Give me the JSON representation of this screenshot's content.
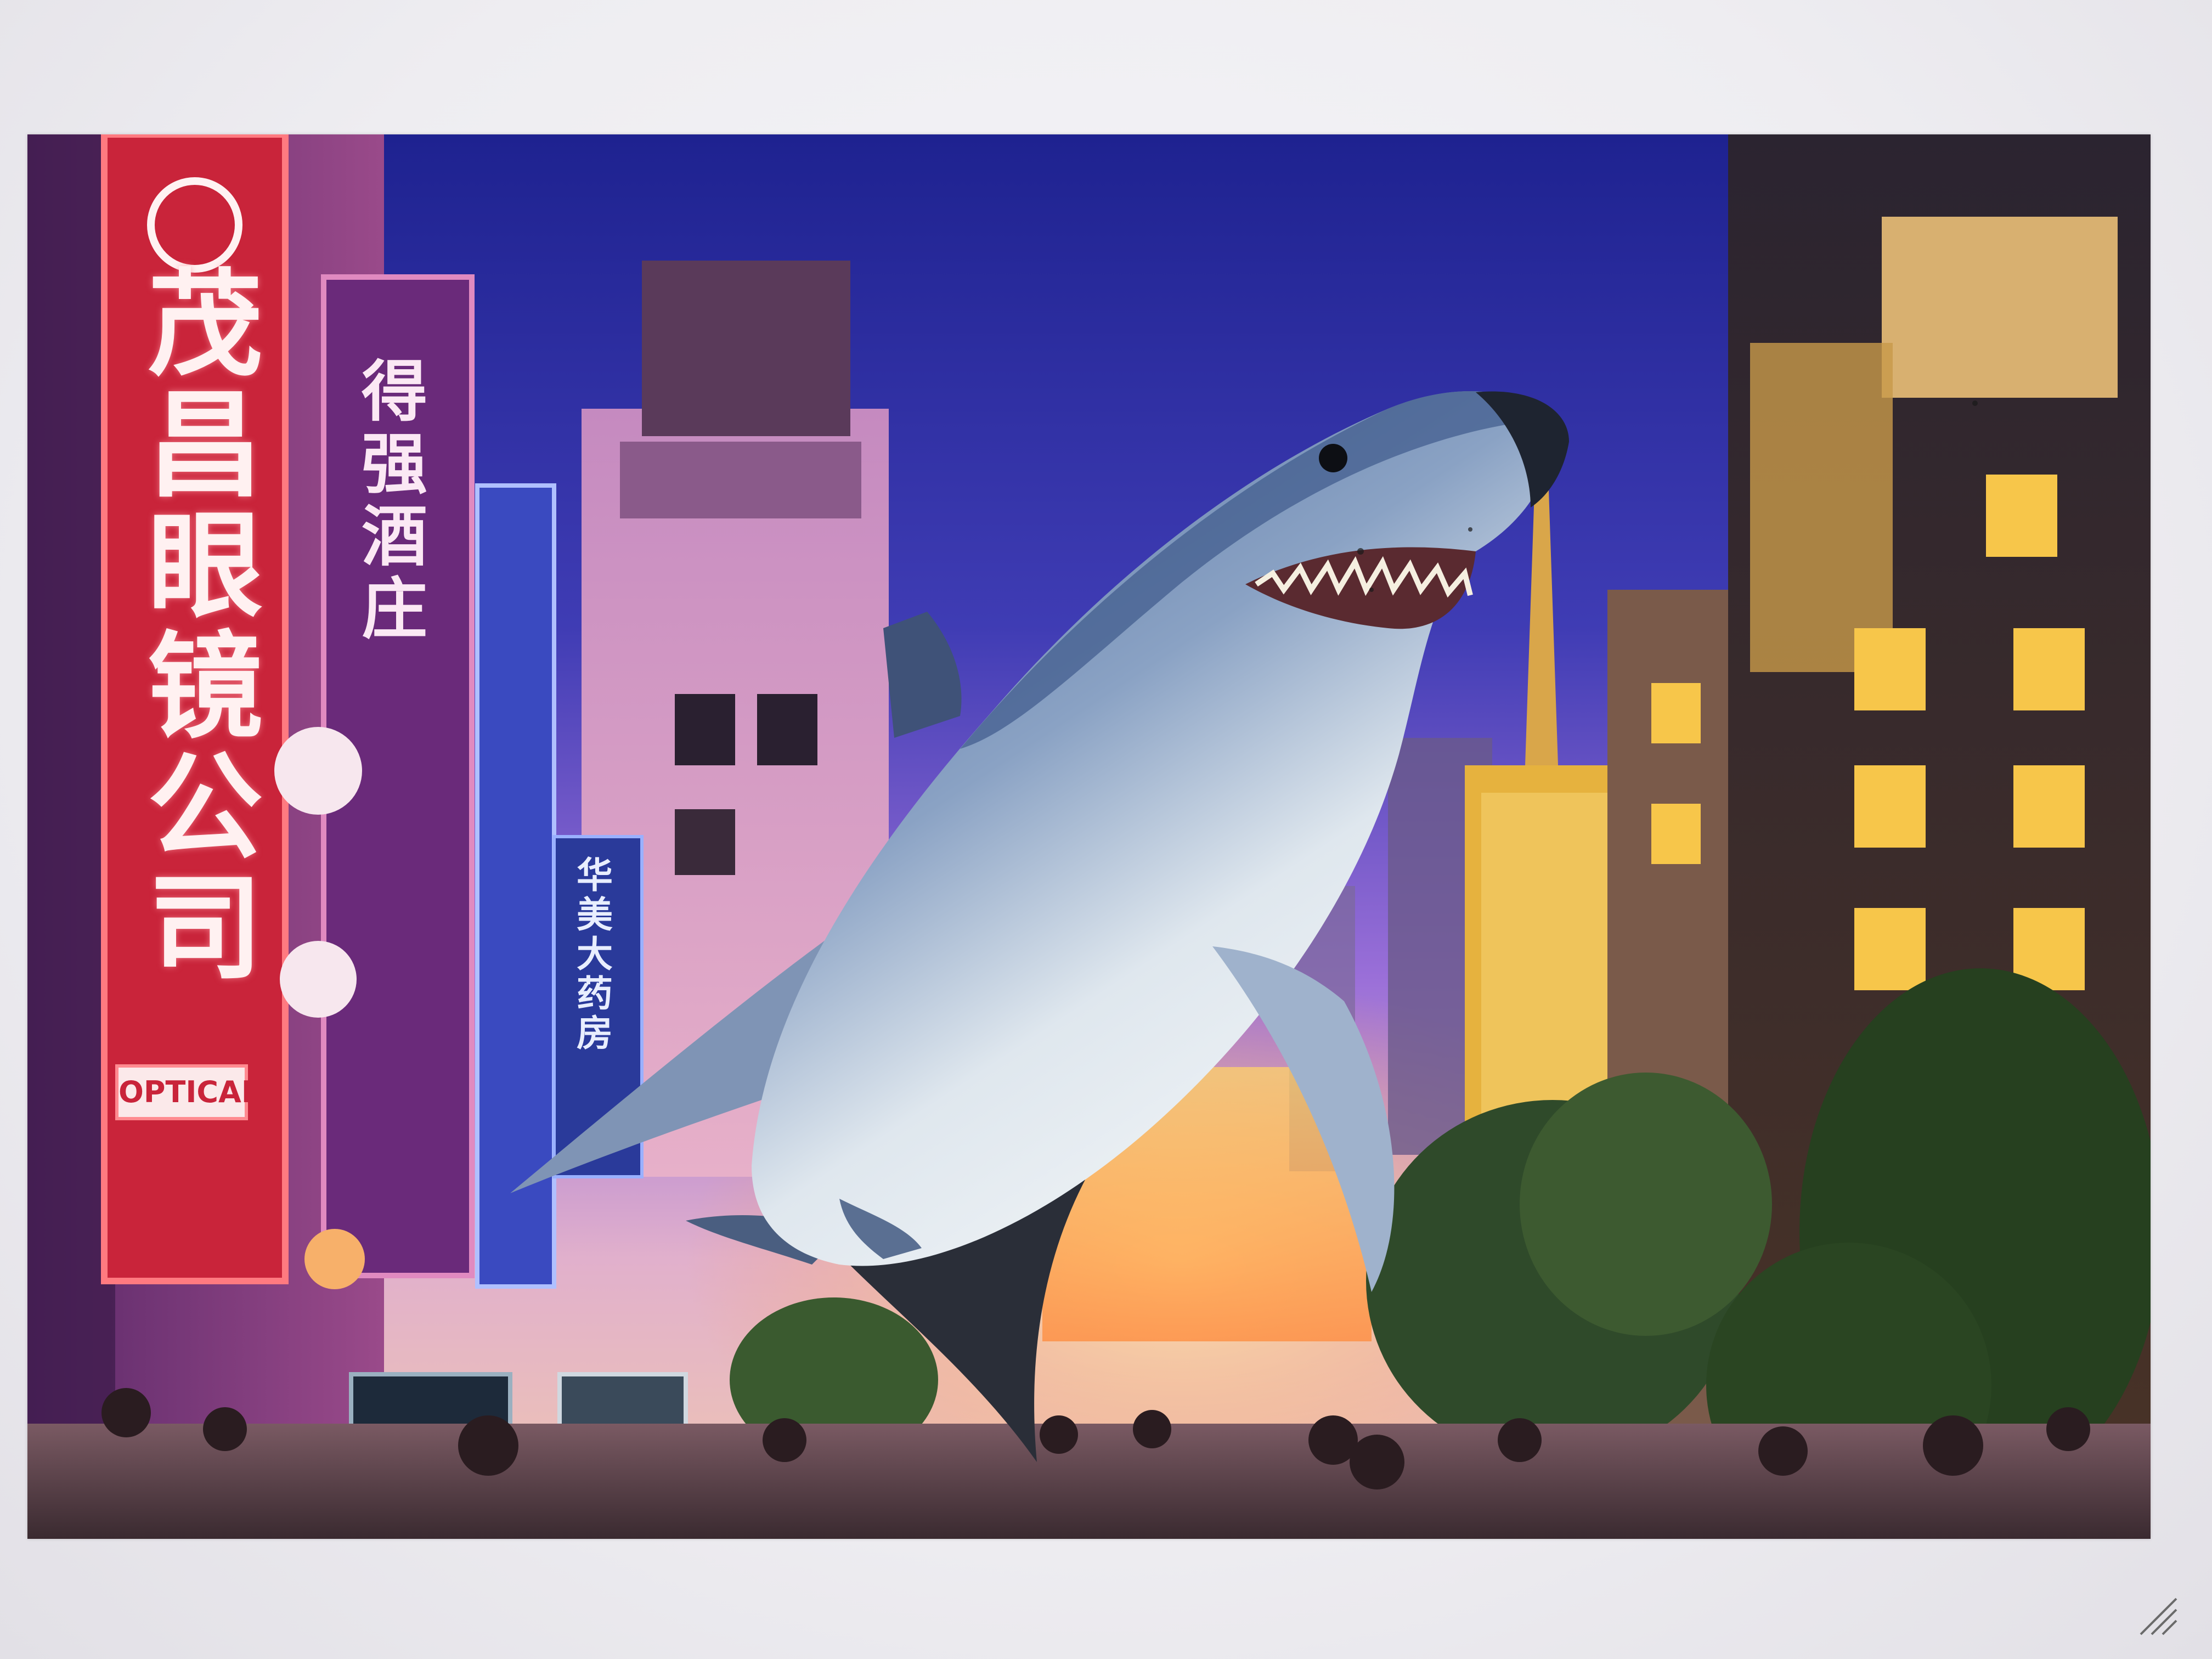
{
  "photo": {
    "signs": {
      "optical_company": "茂昌眼镜公司",
      "optical_label": "OPTICAL",
      "hotel": "得强酒庄",
      "store": "华美大药房"
    }
  },
  "colors": {
    "sky_top": "#2a2c9a",
    "sky_mid": "#8f5fd0",
    "sign_red": "#c9243a",
    "shark_back": "#5f7aa8",
    "shark_belly": "#e8eef2",
    "paper": "#eeedf1"
  }
}
